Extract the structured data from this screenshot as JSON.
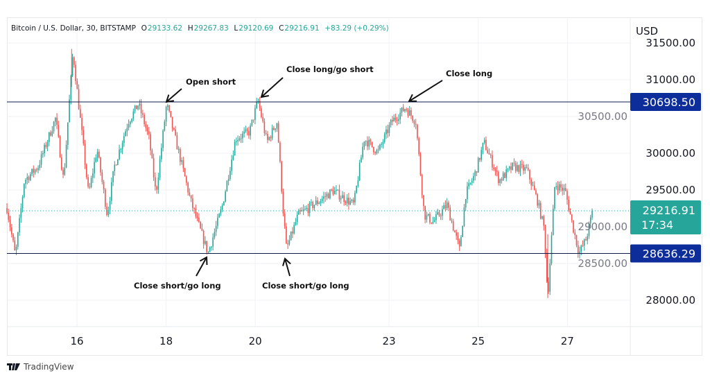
{
  "header": {
    "symbol": "Bitcoin / U.S. Dollar, 30, BITSTAMP",
    "open_label": "O",
    "open": "29133.62",
    "high_label": "H",
    "high": "29267.83",
    "low_label": "L",
    "low": "29120.69",
    "close_label": "C",
    "close": "29216.91",
    "change": "+83.29 (+0.29%)"
  },
  "currency": "USD",
  "footer": {
    "brand": "TradingView",
    "logo_icon": "tradingview-logo-icon"
  },
  "colors": {
    "up": "#26a69a",
    "down": "#ef5350",
    "level_line": "#0d1b4b",
    "level_label": "#0d2d9a",
    "last_price": "#26a69a"
  },
  "chart_data": {
    "type": "candlestick",
    "title": "Bitcoin / U.S. Dollar, 30, BITSTAMP",
    "xlabel": "",
    "ylabel": "USD",
    "x_ticks": [
      16,
      18,
      20,
      23,
      25,
      27
    ],
    "y_ticks": [
      "28000.00",
      "28500.00",
      "29000.00",
      "29500.00",
      "30000.00",
      "30500.00",
      "31000.00",
      "31500.00"
    ],
    "ylim": [
      27650,
      31850
    ],
    "xlim": [
      14.42,
      27.57
    ],
    "price_path_note_units": "day, USD",
    "price_path": [
      [
        14.43,
        29255
      ],
      [
        14.62,
        28600
      ],
      [
        14.82,
        29630
      ],
      [
        15.13,
        29820
      ],
      [
        15.52,
        30480
      ],
      [
        15.7,
        29630
      ],
      [
        15.91,
        31380
      ],
      [
        16.02,
        30760
      ],
      [
        16.26,
        29440
      ],
      [
        16.45,
        30060
      ],
      [
        16.68,
        29160
      ],
      [
        16.84,
        29820
      ],
      [
        17.15,
        30430
      ],
      [
        17.38,
        30670
      ],
      [
        17.62,
        30200
      ],
      [
        17.77,
        29440
      ],
      [
        18.01,
        30670
      ],
      [
        18.32,
        29920
      ],
      [
        18.55,
        29350
      ],
      [
        18.94,
        28640
      ],
      [
        19.25,
        29255
      ],
      [
        19.56,
        30200
      ],
      [
        19.87,
        30290
      ],
      [
        20.06,
        30720
      ],
      [
        20.26,
        30150
      ],
      [
        20.49,
        30430
      ],
      [
        20.62,
        29255
      ],
      [
        20.7,
        28690
      ],
      [
        20.96,
        29160
      ],
      [
        21.43,
        29350
      ],
      [
        21.74,
        29490
      ],
      [
        22.21,
        29300
      ],
      [
        22.44,
        30200
      ],
      [
        22.75,
        30010
      ],
      [
        23.06,
        30430
      ],
      [
        23.37,
        30620
      ],
      [
        23.6,
        30430
      ],
      [
        23.79,
        29160
      ],
      [
        23.99,
        29065
      ],
      [
        24.3,
        29300
      ],
      [
        24.58,
        28690
      ],
      [
        24.72,
        29440
      ],
      [
        24.93,
        29725
      ],
      [
        25.13,
        30150
      ],
      [
        25.47,
        29630
      ],
      [
        25.78,
        29820
      ],
      [
        26.09,
        29775
      ],
      [
        26.33,
        29350
      ],
      [
        26.48,
        28970
      ],
      [
        26.56,
        28030
      ],
      [
        26.72,
        29585
      ],
      [
        26.95,
        29490
      ],
      [
        27.1,
        29065
      ],
      [
        27.26,
        28640
      ],
      [
        27.42,
        28830
      ],
      [
        27.57,
        29217
      ]
    ],
    "levels": [
      {
        "name": "resistance",
        "price": 30698.5,
        "label": "30698.50"
      },
      {
        "name": "support",
        "price": 28636.29,
        "label": "28636.29"
      }
    ],
    "last_price": {
      "price": 29216.91,
      "label": "29216.91",
      "countdown": "17:34"
    },
    "annotations": [
      {
        "text": "Open short",
        "day": 18.03,
        "price": 30698
      },
      {
        "text": "Close long/go short",
        "day": 20.12,
        "price": 30698
      },
      {
        "text": "Close long",
        "day": 23.32,
        "price": 30698
      },
      {
        "text": "Close short/go long",
        "day": 18.93,
        "price": 28636
      },
      {
        "text": "Close short/go long",
        "day": 20.72,
        "price": 28636
      }
    ]
  }
}
